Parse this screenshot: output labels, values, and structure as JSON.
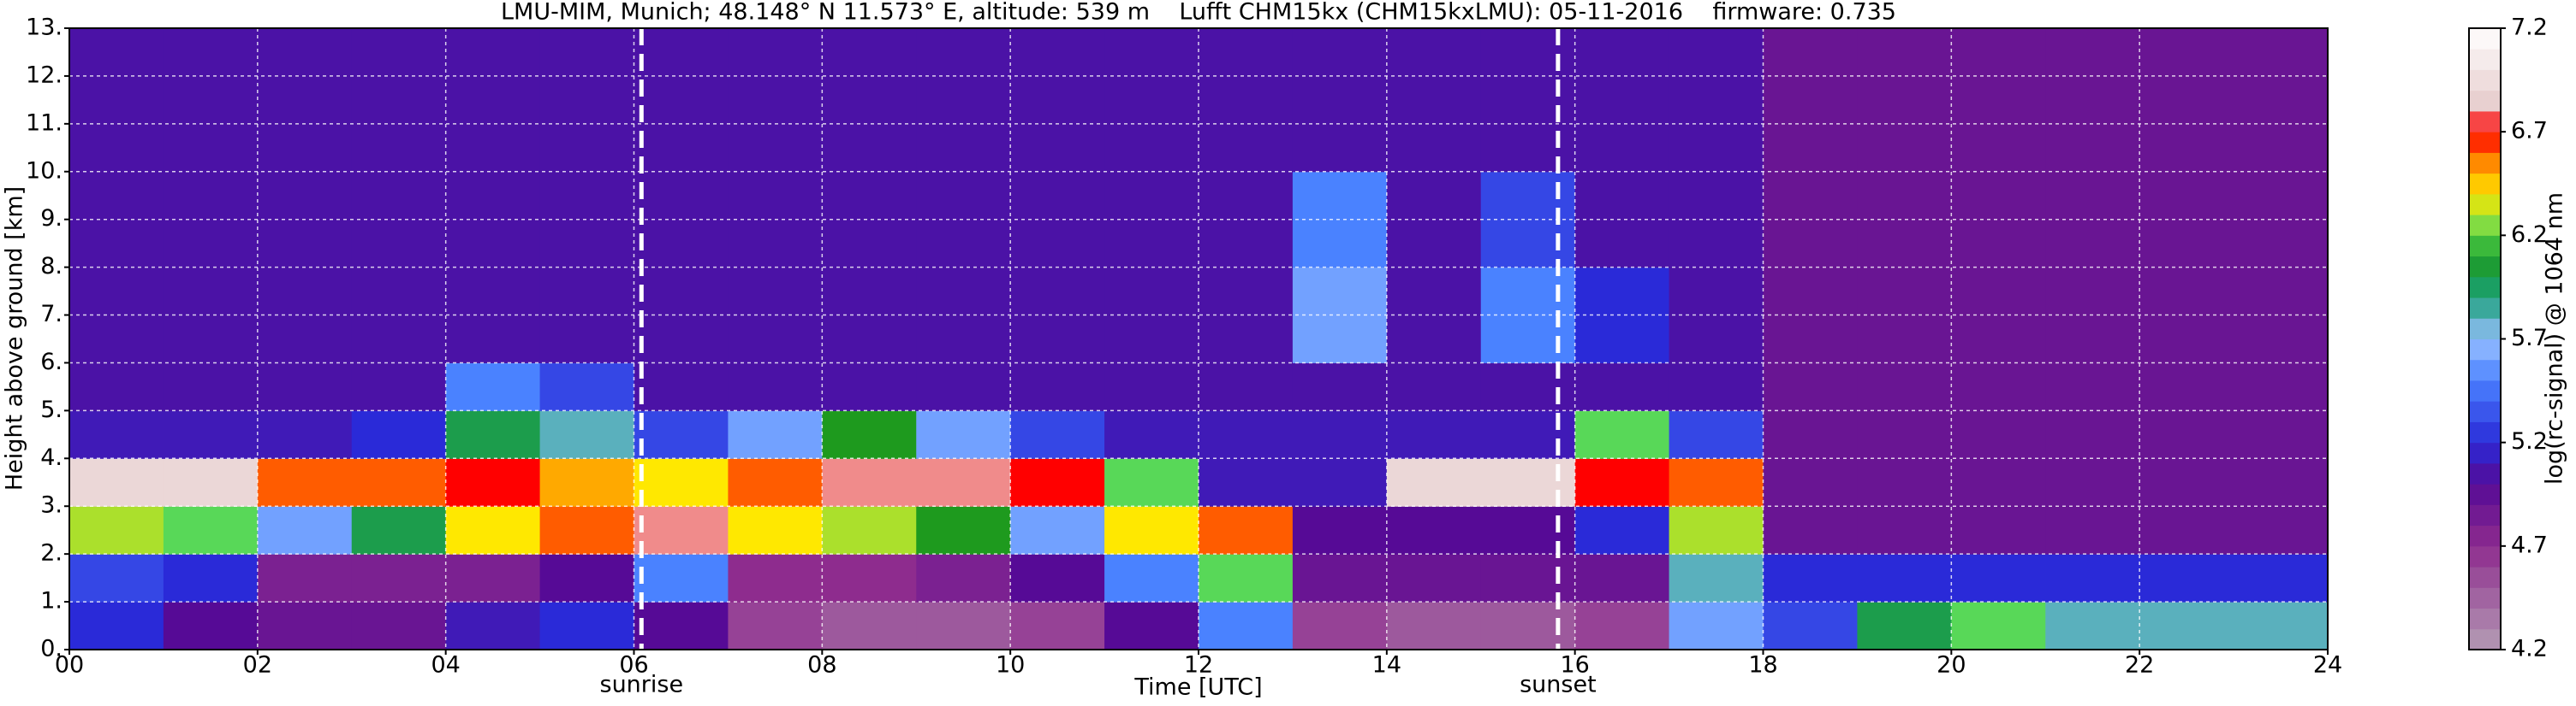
{
  "chart_data": {
    "type": "heatmap",
    "title": "LMU-MIM, Munich; 48.148° N 11.573° E, altitude: 539 m    Lufft CHM15kx (CHM15kxLMU): 05-11-2016    firmware: 0.735",
    "x_label": "Time [UTC]",
    "y_label": "Height above ground [km]",
    "colorbar_label": "log(rc-signal) @ 1064 nm",
    "xlim": [
      0,
      24
    ],
    "xticks": [
      {
        "value": 0,
        "label": "00"
      },
      {
        "value": 2,
        "label": "02"
      },
      {
        "value": 4,
        "label": "04"
      },
      {
        "value": 6,
        "label": "06"
      },
      {
        "value": 8,
        "label": "08"
      },
      10,
      12,
      14,
      16,
      18,
      20,
      22,
      24
    ],
    "ylim": [
      0,
      13
    ],
    "yticks": [
      {
        "value": 0,
        "label": "0."
      },
      {
        "value": 1,
        "label": "1."
      },
      {
        "value": 2,
        "label": "2."
      },
      {
        "value": 3,
        "label": "3."
      },
      {
        "value": 4,
        "label": "4."
      },
      {
        "value": 5,
        "label": "5."
      },
      {
        "value": 6,
        "label": "6."
      },
      {
        "value": 7,
        "label": "7."
      },
      {
        "value": 8,
        "label": "8."
      },
      {
        "value": 9,
        "label": "9."
      },
      {
        "value": 10,
        "label": "10."
      },
      {
        "value": 11,
        "label": "11."
      },
      {
        "value": 12,
        "label": "12."
      },
      {
        "value": 13,
        "label": "13."
      }
    ],
    "grid": true,
    "zlim": [
      4.2,
      7.2
    ],
    "zticks": [
      4.2,
      4.7,
      5.2,
      5.7,
      6.2,
      6.7,
      7.2
    ],
    "colorscale": [
      [
        4.2,
        "#b49cb4"
      ],
      [
        4.7,
        "#8e2c8e"
      ],
      [
        5.0,
        "#560a96"
      ],
      [
        5.2,
        "#2a2ad8"
      ],
      [
        5.5,
        "#4a82ff"
      ],
      [
        5.7,
        "#9ac0ff"
      ],
      [
        5.9,
        "#1aa07a"
      ],
      [
        6.1,
        "#1e9a1e"
      ],
      [
        6.2,
        "#58d858"
      ],
      [
        6.4,
        "#ffe800"
      ],
      [
        6.55,
        "#ff8a00"
      ],
      [
        6.7,
        "#ff0000"
      ],
      [
        6.85,
        "#e8d0d0"
      ],
      [
        7.2,
        "#ffffff"
      ]
    ],
    "x_edges": [
      0,
      1,
      2,
      3,
      4,
      5,
      6,
      7,
      8,
      9,
      10,
      11,
      12,
      13,
      14,
      15,
      16,
      17,
      18,
      19,
      20,
      21,
      22,
      23,
      24
    ],
    "y_edges": [
      0,
      1,
      2,
      3,
      4,
      5,
      6,
      8,
      10,
      13
    ],
    "z": [
      [
        5.2,
        5.0,
        4.9,
        4.9,
        5.1,
        5.2,
        5.0,
        4.6,
        4.5,
        4.5,
        4.6,
        5.0,
        5.5,
        4.6,
        4.5,
        4.5,
        4.6,
        5.6,
        5.3,
        6.0,
        6.2,
        5.8,
        5.8,
        5.8
      ],
      [
        5.3,
        5.2,
        4.8,
        4.8,
        4.8,
        5.0,
        5.5,
        4.7,
        4.7,
        4.8,
        5.0,
        5.5,
        6.2,
        4.9,
        4.9,
        4.9,
        4.9,
        5.8,
        5.2,
        5.2,
        5.2,
        5.2,
        5.2,
        5.2
      ],
      [
        6.3,
        6.2,
        5.6,
        6.0,
        6.4,
        6.6,
        6.8,
        6.4,
        6.3,
        6.1,
        5.6,
        6.4,
        6.6,
        5.0,
        5.0,
        5.0,
        5.2,
        6.3,
        4.9,
        4.9,
        4.9,
        4.9,
        4.9,
        4.9
      ],
      [
        6.9,
        6.9,
        6.6,
        6.6,
        6.7,
        6.5,
        6.4,
        6.6,
        6.8,
        6.8,
        6.7,
        6.2,
        5.1,
        5.1,
        6.9,
        6.9,
        6.7,
        6.6,
        4.9,
        4.9,
        4.9,
        4.9,
        4.9,
        4.9
      ],
      [
        5.1,
        5.1,
        5.1,
        5.2,
        6.0,
        5.8,
        5.3,
        5.6,
        6.1,
        5.6,
        5.3,
        5.1,
        5.1,
        5.1,
        5.1,
        5.1,
        6.2,
        5.3,
        4.9,
        4.9,
        4.9,
        4.9,
        4.9,
        4.9
      ],
      [
        5.05,
        5.05,
        5.05,
        5.05,
        5.5,
        5.3,
        5.05,
        5.05,
        5.05,
        5.05,
        5.05,
        5.05,
        5.05,
        5.05,
        5.05,
        5.05,
        5.05,
        5.05,
        4.9,
        4.9,
        4.9,
        4.9,
        4.9,
        4.9
      ],
      [
        5.05,
        5.05,
        5.05,
        5.05,
        5.05,
        5.05,
        5.05,
        5.05,
        5.05,
        5.05,
        5.05,
        5.05,
        5.05,
        5.6,
        5.05,
        5.5,
        5.2,
        5.05,
        4.9,
        4.9,
        4.9,
        4.9,
        4.9,
        4.9
      ],
      [
        5.05,
        5.05,
        5.05,
        5.05,
        5.05,
        5.05,
        5.05,
        5.05,
        5.05,
        5.05,
        5.05,
        5.05,
        5.05,
        5.5,
        5.05,
        5.3,
        5.05,
        5.05,
        4.9,
        4.9,
        4.9,
        4.9,
        4.9,
        4.9
      ],
      [
        5.05,
        5.05,
        5.05,
        5.05,
        5.05,
        5.05,
        5.05,
        5.05,
        5.05,
        5.05,
        5.05,
        5.05,
        5.05,
        5.05,
        5.05,
        5.05,
        5.05,
        5.05,
        4.9,
        4.9,
        4.9,
        4.9,
        4.9,
        4.9
      ]
    ],
    "annotations": [
      {
        "x": 6.08,
        "label": "sunrise"
      },
      {
        "x": 15.82,
        "label": "sunset"
      }
    ]
  }
}
